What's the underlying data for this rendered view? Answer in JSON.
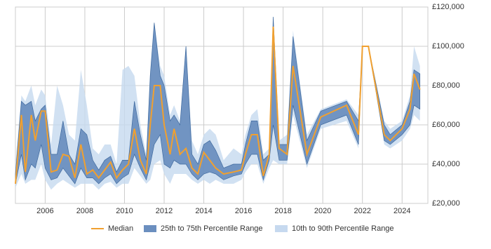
{
  "chart_data": {
    "type": "percentile-band",
    "x": [
      2004.5,
      2004.8,
      2005.0,
      2005.3,
      2005.5,
      2005.8,
      2006.0,
      2006.3,
      2006.6,
      2006.9,
      2007.2,
      2007.5,
      2007.8,
      2008.1,
      2008.4,
      2008.7,
      2009.0,
      2009.3,
      2009.6,
      2009.9,
      2010.2,
      2010.5,
      2010.8,
      2011.1,
      2011.3,
      2011.5,
      2011.8,
      2012.0,
      2012.3,
      2012.5,
      2012.8,
      2013.1,
      2013.4,
      2013.7,
      2014.0,
      2014.3,
      2014.6,
      2015.0,
      2015.5,
      2015.9,
      2016.1,
      2016.4,
      2016.7,
      2017.0,
      2017.3,
      2017.5,
      2017.8,
      2018.2,
      2018.5,
      2019.2,
      2019.9,
      2021.2,
      2021.8,
      2022.0,
      2022.3,
      2023.1,
      2023.4,
      2024.0,
      2024.4,
      2024.6,
      2024.9
    ],
    "series": [
      {
        "name": "Median",
        "color": "#f0a030",
        "values": [
          30000,
          65000,
          36000,
          65000,
          52000,
          67000,
          67000,
          36000,
          37000,
          45000,
          44000,
          33000,
          50000,
          35000,
          37000,
          33000,
          37000,
          41000,
          33000,
          37000,
          40000,
          58000,
          42000,
          35000,
          60000,
          80000,
          80000,
          60000,
          45000,
          58000,
          45000,
          48000,
          38000,
          35000,
          46000,
          42000,
          38000,
          35000,
          36000,
          37000,
          45000,
          55000,
          55000,
          34000,
          45000,
          110000,
          48000,
          45000,
          90000,
          45000,
          64000,
          70000,
          55000,
          100000,
          100000,
          55000,
          52000,
          58000,
          68000,
          86000,
          78000
        ]
      },
      {
        "name": "25th to 75th Percentile Range",
        "color": "#6b8fbf",
        "lower": [
          30000,
          45000,
          32000,
          40000,
          38000,
          50000,
          38000,
          32000,
          33000,
          38000,
          34000,
          30000,
          38000,
          33000,
          33000,
          30000,
          33000,
          35000,
          30000,
          33000,
          35000,
          45000,
          38000,
          32000,
          40000,
          50000,
          55000,
          40000,
          38000,
          42000,
          40000,
          40000,
          35000,
          32000,
          35000,
          36000,
          35000,
          32000,
          34000,
          35000,
          40000,
          45000,
          45000,
          32000,
          42000,
          60000,
          42000,
          42000,
          70000,
          40000,
          60000,
          65000,
          50000,
          100000,
          100000,
          52000,
          50000,
          55000,
          60000,
          70000,
          68000
        ],
        "upper": [
          35000,
          72000,
          70000,
          72000,
          62000,
          68000,
          70000,
          45000,
          45000,
          62000,
          45000,
          40000,
          58000,
          55000,
          42000,
          37000,
          42000,
          44000,
          36000,
          42000,
          42000,
          72000,
          55000,
          42000,
          85000,
          112000,
          85000,
          80000,
          62000,
          65000,
          60000,
          100000,
          45000,
          40000,
          50000,
          52000,
          47000,
          38000,
          40000,
          40000,
          50000,
          62000,
          62000,
          42000,
          45000,
          115000,
          50000,
          50000,
          105000,
          52000,
          67000,
          72000,
          62000,
          100000,
          100000,
          60000,
          55000,
          60000,
          72000,
          88000,
          86000
        ]
      },
      {
        "name": "10th to 90th Percentile Range",
        "color": "#c6d9ef",
        "lower": [
          28000,
          35000,
          30000,
          32000,
          32000,
          40000,
          32000,
          27000,
          30000,
          32000,
          30000,
          28000,
          30000,
          30000,
          30000,
          27000,
          30000,
          31000,
          28000,
          30000,
          30000,
          38000,
          34000,
          30000,
          32000,
          40000,
          42000,
          35000,
          30000,
          35000,
          35000,
          35000,
          32000,
          30000,
          32000,
          30000,
          32000,
          30000,
          30000,
          32000,
          36000,
          40000,
          40000,
          30000,
          38000,
          42000,
          40000,
          40000,
          65000,
          38000,
          58000,
          62000,
          48000,
          100000,
          100000,
          50000,
          48000,
          52000,
          58000,
          65000,
          62000
        ],
        "upper": [
          40000,
          75000,
          72000,
          80000,
          70000,
          78000,
          75000,
          50000,
          80000,
          70000,
          55000,
          52000,
          88000,
          70000,
          48000,
          45000,
          50000,
          50000,
          40000,
          88000,
          90000,
          85000,
          60000,
          45000,
          88000,
          112000,
          90000,
          85000,
          65000,
          70000,
          62000,
          100000,
          52000,
          45000,
          55000,
          58000,
          55000,
          42000,
          48000,
          45000,
          55000,
          65000,
          68000,
          45000,
          48000,
          115000,
          52000,
          55000,
          108000,
          55000,
          68000,
          73000,
          65000,
          100000,
          100000,
          62000,
          58000,
          62000,
          75000,
          100000,
          90000
        ]
      }
    ],
    "xlim": [
      2004.5,
      2025.3
    ],
    "xticks": [
      2006,
      2008,
      2010,
      2012,
      2014,
      2016,
      2018,
      2020,
      2022,
      2024
    ],
    "ylim": [
      20000,
      120000
    ],
    "yticks": [
      {
        "value": 20000,
        "label": "£20,000"
      },
      {
        "value": 40000,
        "label": "£40,000"
      },
      {
        "value": 60000,
        "label": "£60,000"
      },
      {
        "value": 80000,
        "label": "£80,000"
      },
      {
        "value": 100000,
        "label": "£100,000"
      },
      {
        "value": 120000,
        "label": "£120,000"
      }
    ],
    "grid": true,
    "legend": "bottom"
  }
}
